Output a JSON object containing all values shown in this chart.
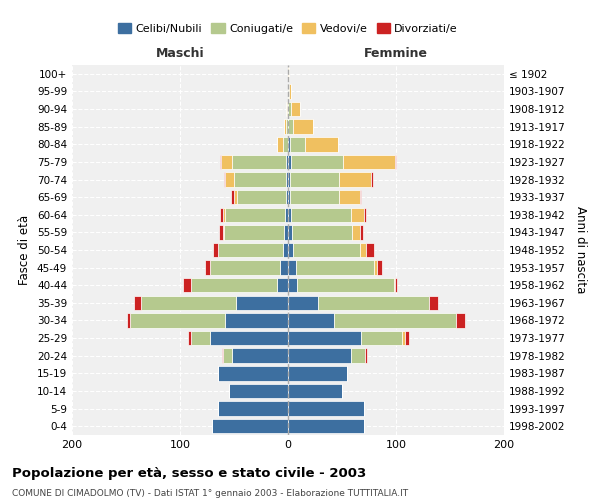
{
  "age_groups": [
    "0-4",
    "5-9",
    "10-14",
    "15-19",
    "20-24",
    "25-29",
    "30-34",
    "35-39",
    "40-44",
    "45-49",
    "50-54",
    "55-59",
    "60-64",
    "65-69",
    "70-74",
    "75-79",
    "80-84",
    "85-89",
    "90-94",
    "95-99",
    "100+"
  ],
  "birth_years": [
    "1998-2002",
    "1993-1997",
    "1988-1992",
    "1983-1987",
    "1978-1982",
    "1973-1977",
    "1968-1972",
    "1963-1967",
    "1958-1962",
    "1953-1957",
    "1948-1952",
    "1943-1947",
    "1938-1942",
    "1933-1937",
    "1928-1932",
    "1923-1927",
    "1918-1922",
    "1913-1917",
    "1908-1912",
    "1903-1907",
    "≤ 1902"
  ],
  "maschi": {
    "celibi": [
      70,
      65,
      55,
      65,
      52,
      72,
      58,
      48,
      10,
      7,
      5,
      4,
      3,
      2,
      2,
      2,
      0,
      0,
      0,
      0,
      0
    ],
    "coniugati": [
      0,
      0,
      0,
      0,
      8,
      18,
      88,
      88,
      80,
      65,
      60,
      55,
      55,
      45,
      48,
      50,
      5,
      2,
      1,
      0,
      0
    ],
    "vedovi": [
      0,
      0,
      0,
      0,
      0,
      0,
      0,
      0,
      0,
      0,
      0,
      1,
      2,
      3,
      8,
      10,
      5,
      2,
      1,
      0,
      0
    ],
    "divorziati": [
      0,
      0,
      0,
      0,
      1,
      3,
      3,
      7,
      7,
      5,
      4,
      4,
      3,
      3,
      1,
      1,
      0,
      0,
      0,
      0,
      0
    ]
  },
  "femmine": {
    "nubili": [
      70,
      70,
      50,
      55,
      58,
      68,
      43,
      28,
      8,
      7,
      5,
      4,
      3,
      2,
      2,
      3,
      2,
      0,
      0,
      0,
      0
    ],
    "coniugate": [
      0,
      0,
      0,
      0,
      13,
      38,
      113,
      103,
      90,
      73,
      62,
      55,
      55,
      45,
      45,
      48,
      14,
      5,
      3,
      1,
      0
    ],
    "vedove": [
      0,
      0,
      0,
      0,
      0,
      2,
      0,
      0,
      1,
      2,
      5,
      8,
      12,
      20,
      30,
      48,
      30,
      18,
      8,
      2,
      1
    ],
    "divorziate": [
      0,
      0,
      0,
      0,
      2,
      4,
      8,
      8,
      2,
      5,
      8,
      2,
      2,
      1,
      2,
      1,
      0,
      0,
      0,
      0,
      0
    ]
  },
  "colors": {
    "celibi_nubili": "#3d6fa0",
    "coniugati": "#b5c98e",
    "vedovi": "#f0c060",
    "divorziati": "#cc2222"
  },
  "title": "Popolazione per età, sesso e stato civile - 2003",
  "subtitle": "COMUNE DI CIMADOLMO (TV) - Dati ISTAT 1° gennaio 2003 - Elaborazione TUTTITALIA.IT",
  "xlabel_left": "Maschi",
  "xlabel_right": "Femmine",
  "ylabel_left": "Fasce di età",
  "ylabel_right": "Anni di nascita",
  "xlim": 200,
  "bg_color": "#f0f0f0",
  "bar_edge_color": "white"
}
